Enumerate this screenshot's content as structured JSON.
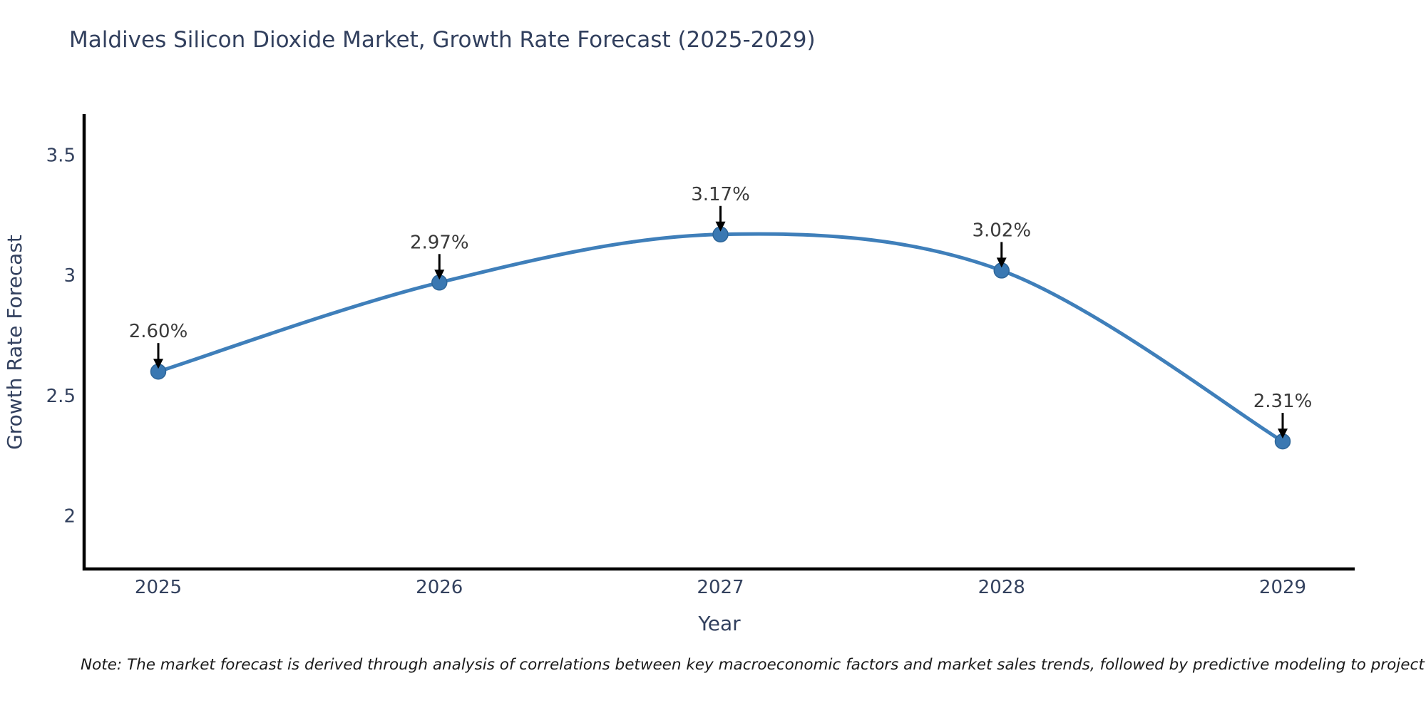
{
  "title": "Maldives Silicon Dioxide Market, Growth Rate Forecast (2025-2029)",
  "note": "Note: The market forecast is derived through analysis of correlations between key macroeconomic factors and market sales trends, followed by predictive modeling to project future sales",
  "chart_data": {
    "type": "line",
    "x": [
      2025,
      2026,
      2027,
      2028,
      2029
    ],
    "values": [
      2.6,
      2.97,
      3.17,
      3.02,
      2.31
    ],
    "point_labels": [
      "2.60%",
      "2.97%",
      "3.17%",
      "3.02%",
      "2.31%"
    ],
    "title": "Maldives Silicon Dioxide Market, Growth Rate Forecast (2025-2029)",
    "xlabel": "Year",
    "ylabel": "Growth Rate Forecast",
    "xtick_labels": [
      "2025",
      "2026",
      "2027",
      "2028",
      "2029"
    ],
    "yticks": [
      2,
      2.5,
      3,
      3.5
    ],
    "ytick_labels": [
      "2",
      "2.5",
      "3",
      "3.5"
    ],
    "ylim": [
      1.78,
      3.67
    ],
    "grid": false,
    "legend_position": "none",
    "line_color": "#3f7fba",
    "marker_color": "#3a78b2",
    "marker_edge_color": "#2e6699",
    "annotation_color": "#3a3a3a",
    "arrow_color": "#000000",
    "axis_color": "#000000",
    "tick_label_color": "#33415e",
    "axis_title_color": "#32405e"
  }
}
